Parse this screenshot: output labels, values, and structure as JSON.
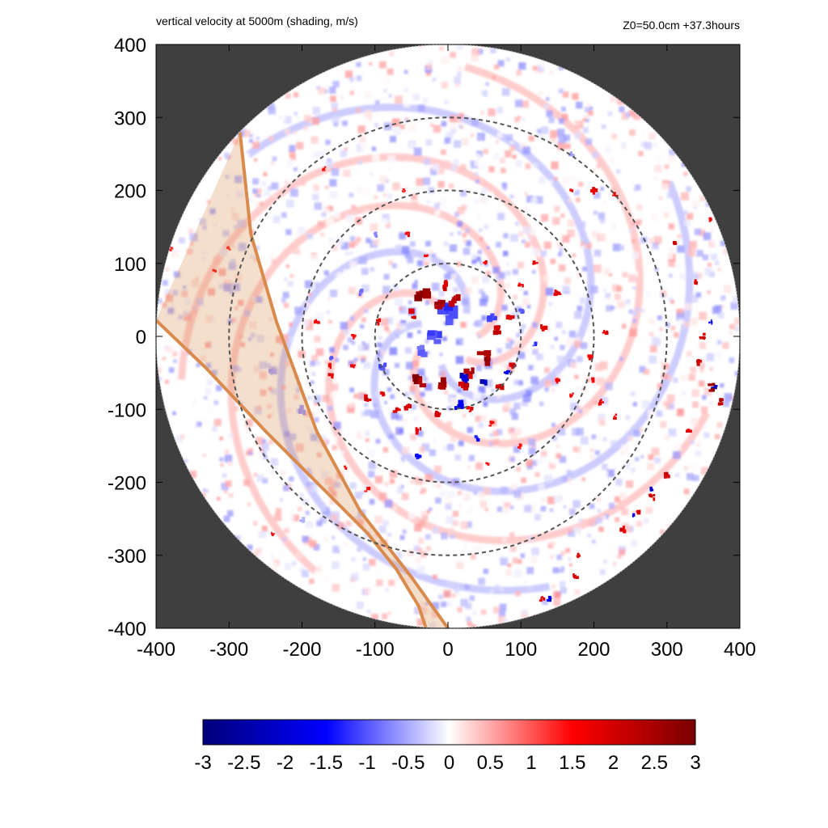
{
  "chart_data": {
    "type": "heatmap",
    "title": "vertical velocity at 5000m (shading, m/s)",
    "subtitle": "Z0=50.0cm  +37.3hours",
    "xlim": [
      -400,
      400
    ],
    "ylim": [
      -400,
      400
    ],
    "x_ticks": [
      "-400",
      "-300",
      "-200",
      "-100",
      "0",
      "100",
      "200",
      "300",
      "400"
    ],
    "y_ticks": [
      "400",
      "300",
      "200",
      "100",
      "0",
      "-100",
      "-200",
      "-300",
      "-400"
    ],
    "domain_radius": 400,
    "range_rings": [
      100,
      200,
      300
    ],
    "colorbar": {
      "range": [
        -3,
        3
      ],
      "ticks": [
        "-3",
        "-2.5",
        "-2",
        "-1.5",
        "-1",
        "-0.5",
        "0",
        "0.5",
        "1",
        "1.5",
        "2",
        "2.5",
        "3"
      ],
      "colors": [
        "#00007a",
        "#0000ff",
        "#ffffff",
        "#ff0000",
        "#7a0000"
      ]
    },
    "background_color": "#3f3f3f",
    "shaded_band": {
      "color": "#d98b4d",
      "left_edge": [
        [
          -400,
          22
        ],
        [
          -330,
          -45
        ],
        [
          -250,
          -130
        ],
        [
          -170,
          -210
        ],
        [
          -110,
          -270
        ],
        [
          -70,
          -320
        ],
        [
          -40,
          -370
        ],
        [
          -30,
          -400
        ]
      ],
      "right_edge": [
        [
          -285,
          280
        ],
        [
          -270,
          140
        ],
        [
          -235,
          20
        ],
        [
          -180,
          -130
        ],
        [
          -120,
          -240
        ],
        [
          -50,
          -330
        ],
        [
          0,
          -400
        ]
      ]
    },
    "features": {
      "positive": [
        [
          -35,
          55,
          1.2,
          3.0
        ],
        [
          -12,
          45,
          1.1,
          2.8
        ],
        [
          10,
          50,
          1.0,
          2.6
        ],
        [
          -50,
          30,
          0.9,
          2.4
        ],
        [
          70,
          10,
          0.9,
          2.6
        ],
        [
          50,
          -30,
          1.4,
          3.0
        ],
        [
          30,
          -50,
          1.0,
          2.6
        ],
        [
          -40,
          -60,
          1.3,
          3.0
        ],
        [
          -10,
          -65,
          1.1,
          2.8
        ],
        [
          20,
          -70,
          1.0,
          2.5
        ],
        [
          -15,
          -105,
          0.8,
          2.4
        ],
        [
          -55,
          -95,
          0.7,
          2.2
        ],
        [
          70,
          -70,
          0.8,
          2.4
        ],
        [
          85,
          25,
          0.7,
          2.3
        ],
        [
          90,
          -40,
          0.7,
          2.2
        ],
        [
          -5,
          70,
          0.9,
          2.2
        ],
        [
          -95,
          20,
          0.6,
          2.1
        ],
        [
          -90,
          -80,
          0.5,
          2.0
        ],
        [
          -130,
          -40,
          0.5,
          1.9
        ],
        [
          -160,
          -55,
          0.5,
          2.0
        ],
        [
          -110,
          -85,
          0.6,
          2.2
        ],
        [
          -70,
          -100,
          0.6,
          2.1
        ],
        [
          30,
          -100,
          0.6,
          2.0
        ],
        [
          -40,
          -130,
          0.6,
          2.0
        ],
        [
          60,
          -120,
          0.5,
          1.8
        ],
        [
          130,
          10,
          0.7,
          2.1
        ],
        [
          150,
          60,
          0.6,
          2.1
        ],
        [
          120,
          100,
          0.6,
          1.9
        ],
        [
          150,
          -60,
          0.5,
          1.8
        ],
        [
          170,
          -80,
          0.5,
          1.9
        ],
        [
          200,
          -60,
          0.5,
          1.8
        ],
        [
          210,
          -90,
          0.6,
          2.0
        ],
        [
          230,
          -110,
          0.5,
          1.9
        ],
        [
          215,
          5,
          0.6,
          2.0
        ],
        [
          195,
          -30,
          0.6,
          2.0
        ],
        [
          -180,
          20,
          0.5,
          1.8
        ],
        [
          -160,
          -40,
          0.5,
          1.8
        ],
        [
          -130,
          0,
          0.5,
          1.7
        ],
        [
          -55,
          140,
          0.5,
          1.7
        ],
        [
          -30,
          110,
          0.5,
          1.7
        ],
        [
          50,
          100,
          0.5,
          1.7
        ],
        [
          100,
          70,
          0.5,
          1.7
        ],
        [
          -170,
          230,
          0.4,
          1.8
        ],
        [
          -300,
          120,
          0.4,
          1.6
        ],
        [
          200,
          200,
          0.6,
          2.2
        ],
        [
          230,
          195,
          0.5,
          2.0
        ],
        [
          170,
          200,
          0.4,
          1.8
        ],
        [
          310,
          130,
          0.6,
          2.4
        ],
        [
          340,
          75,
          0.5,
          2.0
        ],
        [
          350,
          0,
          0.6,
          2.2
        ],
        [
          360,
          -70,
          0.8,
          3.0
        ],
        [
          375,
          -90,
          0.6,
          2.6
        ],
        [
          345,
          -35,
          0.6,
          2.3
        ],
        [
          330,
          -130,
          0.5,
          2.0
        ],
        [
          300,
          -190,
          0.6,
          2.3
        ],
        [
          280,
          -220,
          0.6,
          2.4
        ],
        [
          260,
          -240,
          0.6,
          2.2
        ],
        [
          240,
          -265,
          0.6,
          2.2
        ],
        [
          180,
          -300,
          0.5,
          2.0
        ],
        [
          175,
          -330,
          0.6,
          2.2
        ],
        [
          130,
          -360,
          0.5,
          2.0
        ],
        [
          120,
          -385,
          0.5,
          2.0
        ],
        [
          -320,
          -390,
          0.4,
          1.5
        ],
        [
          -220,
          -390,
          0.4,
          1.5
        ],
        [
          -260,
          -350,
          0.4,
          1.6
        ],
        [
          -380,
          120,
          0.4,
          1.5
        ],
        [
          -320,
          90,
          0.4,
          1.6
        ],
        [
          -110,
          -210,
          0.5,
          1.7
        ],
        [
          -140,
          -180,
          0.4,
          1.6
        ],
        [
          55,
          -175,
          0.4,
          1.7
        ],
        [
          100,
          -150,
          0.5,
          1.6
        ],
        [
          -240,
          -270,
          0.4,
          1.5
        ],
        [
          280,
          300,
          0.5,
          1.6
        ],
        [
          360,
          160,
          0.4,
          1.7
        ],
        [
          -60,
          200,
          0.4,
          1.5
        ]
      ],
      "negative": [
        [
          0,
          30,
          2.0,
          -1.3
        ],
        [
          -20,
          0,
          1.5,
          -1.2
        ],
        [
          25,
          -60,
          1.2,
          -2.4
        ],
        [
          50,
          -65,
          0.8,
          -2.6
        ],
        [
          -35,
          -20,
          1.1,
          -1.0
        ],
        [
          60,
          25,
          0.9,
          -1.3
        ],
        [
          15,
          -95,
          0.9,
          -1.9
        ],
        [
          -90,
          -40,
          0.8,
          -1.2
        ],
        [
          80,
          -50,
          0.6,
          -1.8
        ],
        [
          -120,
          60,
          0.6,
          -1.0
        ],
        [
          100,
          35,
          0.6,
          -1.2
        ],
        [
          -160,
          -30,
          0.5,
          -1.1
        ],
        [
          -40,
          -165,
          0.6,
          -1.6
        ],
        [
          40,
          -140,
          0.5,
          -1.5
        ],
        [
          120,
          -10,
          0.5,
          -1.3
        ],
        [
          365,
          -70,
          0.5,
          -2.4
        ],
        [
          280,
          -210,
          0.5,
          -2.2
        ],
        [
          255,
          -245,
          0.4,
          -2.0
        ],
        [
          140,
          -360,
          0.5,
          -2.2
        ],
        [
          360,
          20,
          0.4,
          -1.6
        ],
        [
          -200,
          -100,
          0.8,
          -0.7
        ],
        [
          -240,
          -50,
          0.7,
          -0.6
        ],
        [
          -200,
          -250,
          0.6,
          -0.5
        ],
        [
          170,
          250,
          0.6,
          -0.6
        ],
        [
          -100,
          140,
          0.5,
          -0.8
        ]
      ]
    }
  }
}
